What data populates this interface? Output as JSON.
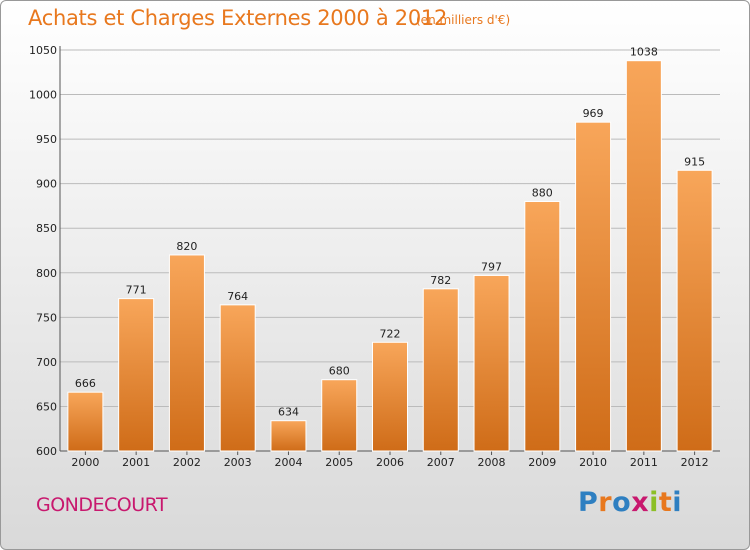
{
  "header": {
    "title": "Achats et Charges Externes 2000 à 2012",
    "unit": "(en milliers d'€)"
  },
  "footer": {
    "commune": "GONDECOURT",
    "logo_text": "Proxiti",
    "logo_colors": [
      "#2e7fc1",
      "#e8781e",
      "#2e7fc1",
      "#c8186e",
      "#8cbf26",
      "#e8781e",
      "#2e7fc1"
    ]
  },
  "chart_data": {
    "type": "bar",
    "title": "Achats et Charges Externes 2000 à 2012",
    "subtitle": "(en milliers d'€)",
    "categories": [
      "2000",
      "2001",
      "2002",
      "2003",
      "2004",
      "2005",
      "2006",
      "2007",
      "2008",
      "2009",
      "2010",
      "2011",
      "2012"
    ],
    "values": [
      666,
      771,
      820,
      764,
      634,
      680,
      722,
      782,
      797,
      880,
      969,
      1038,
      915
    ],
    "ylim": [
      600,
      1050
    ],
    "yticks": [
      600,
      650,
      700,
      750,
      800,
      850,
      900,
      950,
      1000,
      1050
    ],
    "grid": true,
    "bar_color_top": "#f8a65a",
    "bar_color_bottom": "#cf6c18"
  }
}
